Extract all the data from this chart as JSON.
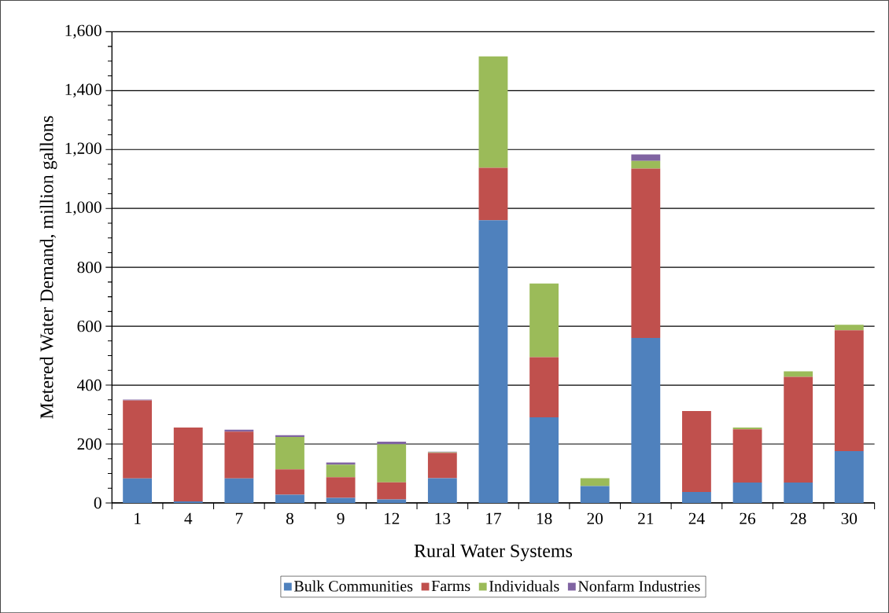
{
  "chart_data": {
    "type": "bar",
    "stacked": true,
    "xlabel": "Rural Water Systems",
    "ylabel": "Metered Water Demand, million gallons",
    "categories": [
      "1",
      "4",
      "7",
      "8",
      "9",
      "12",
      "13",
      "17",
      "18",
      "20",
      "21",
      "24",
      "26",
      "28",
      "30"
    ],
    "series": [
      {
        "name": "Bulk Communities",
        "color": "#4f81bd",
        "values": [
          83,
          5,
          83,
          28,
          17,
          12,
          84,
          960,
          291,
          57,
          560,
          37,
          69,
          69,
          176
        ]
      },
      {
        "name": "Farms",
        "color": "#c0504d",
        "values": [
          265,
          251,
          159,
          86,
          70,
          58,
          86,
          178,
          204,
          0,
          575,
          275,
          181,
          359,
          410
        ]
      },
      {
        "name": "Individuals",
        "color": "#9bbb59",
        "values": [
          0,
          0,
          0,
          110,
          43,
          129,
          2,
          378,
          250,
          27,
          26,
          0,
          6,
          19,
          19
        ]
      },
      {
        "name": "Nonfarm Industries",
        "color": "#8064a2",
        "values": [
          3,
          0,
          7,
          6,
          7,
          9,
          2,
          0,
          0,
          0,
          22,
          0,
          0,
          0,
          0
        ]
      }
    ],
    "ylim": [
      0,
      1600
    ],
    "yticks": [
      {
        "value": 0,
        "label": "0"
      },
      {
        "value": 200,
        "label": "200"
      },
      {
        "value": 400,
        "label": "400"
      },
      {
        "value": 600,
        "label": "600"
      },
      {
        "value": 800,
        "label": "800"
      },
      {
        "value": 1000,
        "label": "1,000"
      },
      {
        "value": 1200,
        "label": "1,200"
      },
      {
        "value": 1400,
        "label": "1,400"
      },
      {
        "value": 1600,
        "label": "1,600"
      }
    ],
    "grid": "y",
    "legend": "bottom"
  }
}
